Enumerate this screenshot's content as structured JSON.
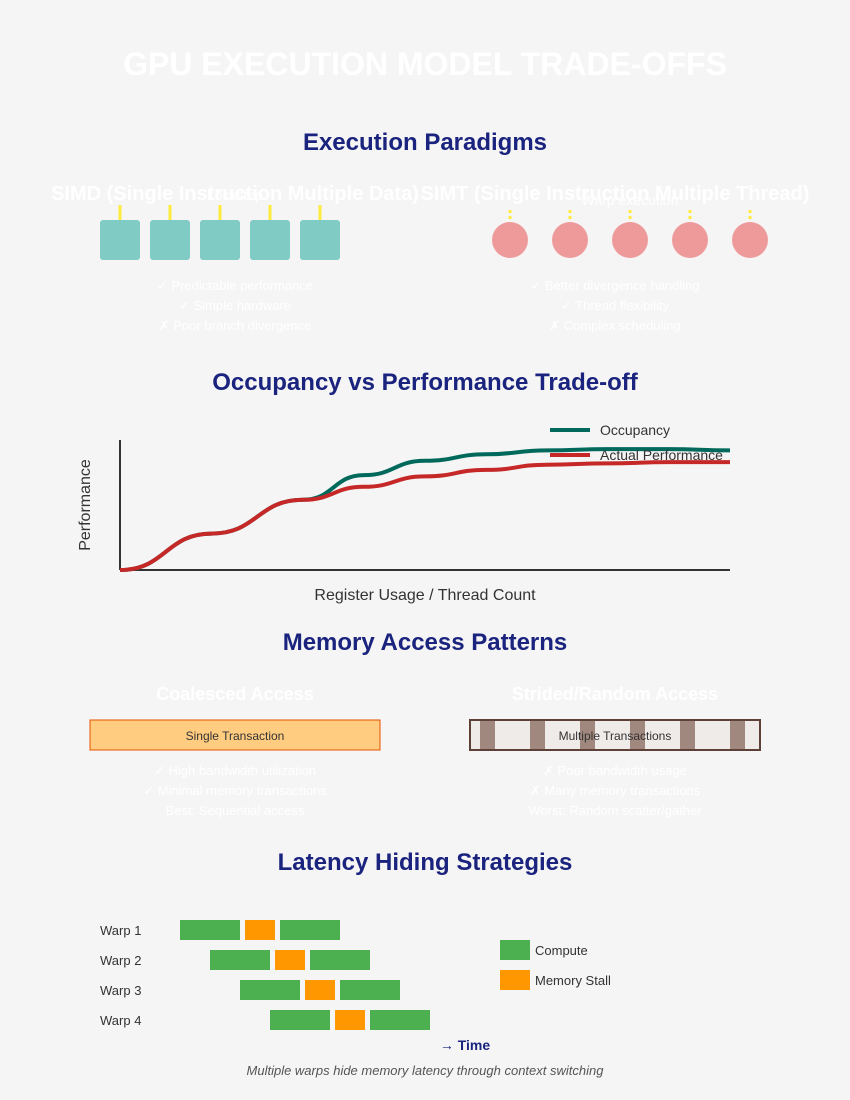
{
  "title": "GPU EXECUTION MODEL TRADE-OFFS",
  "colors": {
    "heading": "#1a237e",
    "simd_fill": "#80cbc4",
    "simt_fill": "#ef9a9a",
    "thread_line": "#ffeb3b",
    "occupancy": "#00695c",
    "performance": "#c62828",
    "coalesced_fill": "#ffcc80",
    "coalesced_stroke": "#e65100",
    "strided_stroke": "#5d4037",
    "strided_block": "#a1887f",
    "compute": "#4caf50",
    "stall": "#ff9800"
  },
  "paradigms": {
    "heading": "Execution Paradigms",
    "simd": {
      "title": "SIMD (Single Instruction Multiple Data)",
      "subtitle": "Lockstep",
      "lane_count": 5,
      "bullets": [
        "✓ Predictable performance",
        "✓ Simple hardware",
        "✗ Poor branch divergence"
      ]
    },
    "simt": {
      "title": "SIMT (Single Instruction Multiple Thread)",
      "subtitle": "Warp execution",
      "thread_count": 5,
      "bullets": [
        "✓ Better divergence handling",
        "✓ Thread flexibility",
        "✗ Complex scheduling"
      ]
    }
  },
  "occupancy": {
    "heading": "Occupancy vs Performance Trade-off",
    "chart_data": {
      "type": "line",
      "xlabel": "Register Usage / Thread Count",
      "ylabel": "Performance",
      "xlim": [
        0,
        100
      ],
      "ylim": [
        0,
        100
      ],
      "x": [
        0,
        15,
        30,
        40,
        50,
        60,
        70,
        80,
        90,
        100
      ],
      "series": [
        {
          "name": "Occupancy",
          "values": [
            0,
            28,
            54,
            73,
            84,
            89,
            92,
            93,
            93,
            92
          ]
        },
        {
          "name": "Actual Performance",
          "values": [
            0,
            28,
            54,
            64,
            72,
            77,
            81,
            82,
            83,
            83
          ]
        }
      ],
      "legend": "top-right"
    }
  },
  "memory": {
    "heading": "Memory Access Patterns",
    "coalesced": {
      "title": "Coalesced Access",
      "label": "Single Transaction",
      "bullets": [
        "✓ High bandwidth utilization",
        "✓ Minimal memory transactions",
        "Best: Sequential access"
      ]
    },
    "strided": {
      "title": "Strided/Random Access",
      "label": "Multiple Transactions",
      "block_count": 6,
      "bullets": [
        "✗ Poor bandwidth usage",
        "✗ Many memory transactions",
        "Worst: Random scatter/gather"
      ]
    }
  },
  "latency": {
    "heading": "Latency Hiding Strategies",
    "warps": [
      "Warp 1",
      "Warp 2",
      "Warp 3",
      "Warp 4"
    ],
    "legend": [
      "Compute",
      "Memory Stall"
    ],
    "time_label": "→ Time",
    "caption": "Multiple warps hide memory latency through context switching"
  }
}
